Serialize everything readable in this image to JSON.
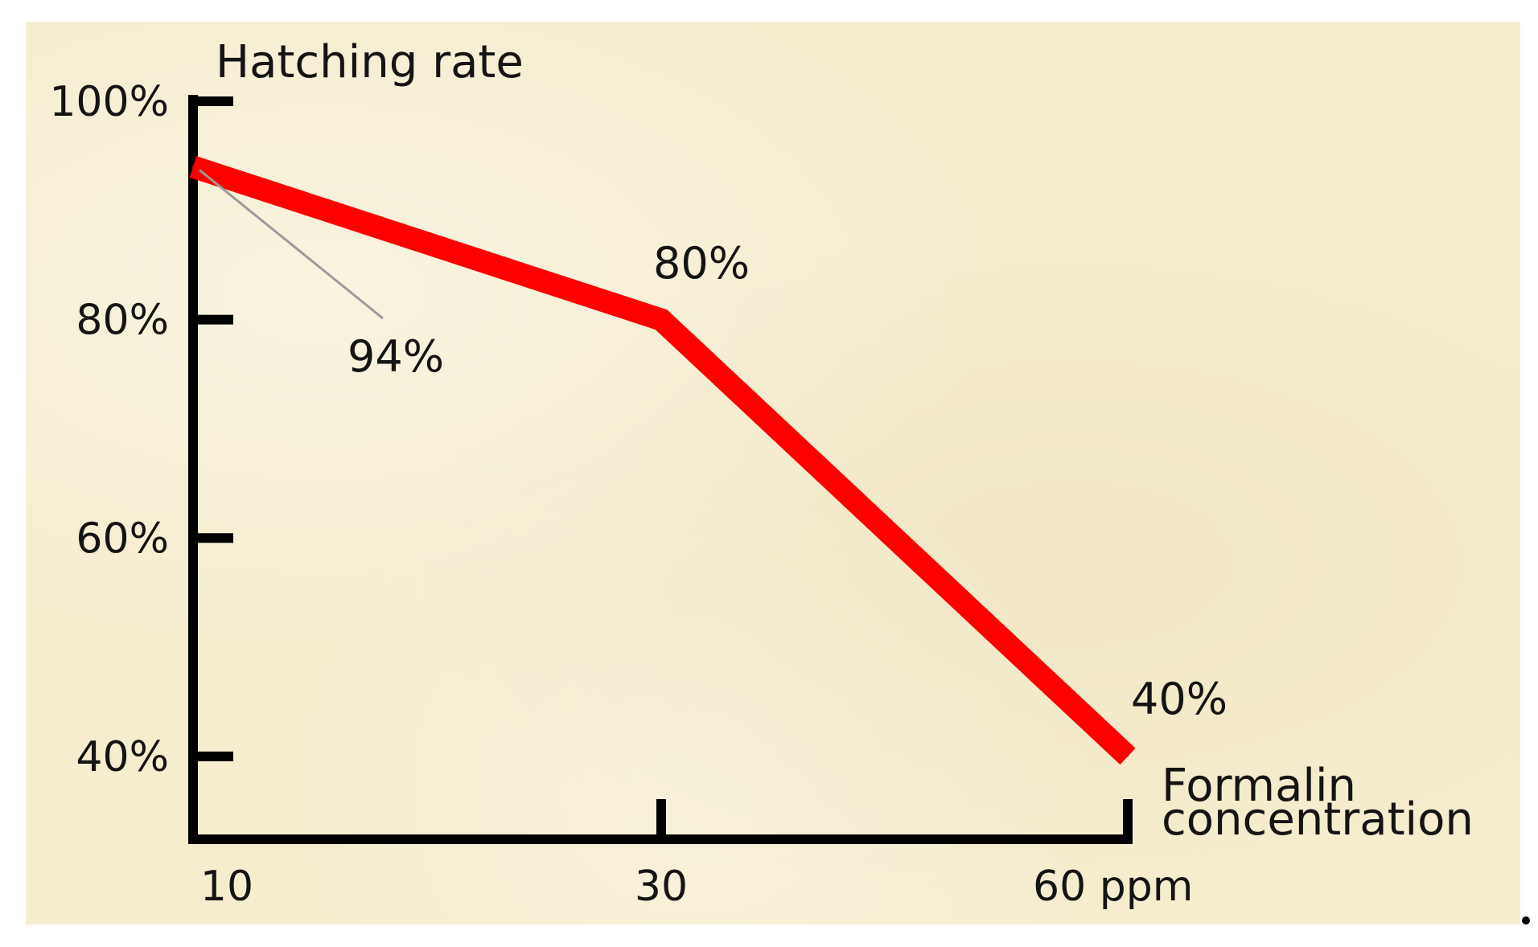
{
  "chart_data": {
    "type": "line",
    "title": "",
    "ylabel": "Hatching rate",
    "xlabel_lines": [
      "Formalin",
      "concentration"
    ],
    "x_tick_labels": [
      "10",
      "30",
      "60 ppm"
    ],
    "y_tick_labels": [
      "40%",
      "60%",
      "80%",
      "100%"
    ],
    "y_ticks": [
      40,
      60,
      80,
      100
    ],
    "ylim": [
      33,
      100
    ],
    "grid": false,
    "legend": "none",
    "series": [
      {
        "color": "#ff0000",
        "points": [
          {
            "x": "10",
            "y": 94,
            "label": "94%"
          },
          {
            "x": "30",
            "y": 80,
            "label": "80%"
          },
          {
            "x": "60 ppm",
            "y": 40,
            "label": "40%"
          }
        ]
      }
    ]
  }
}
